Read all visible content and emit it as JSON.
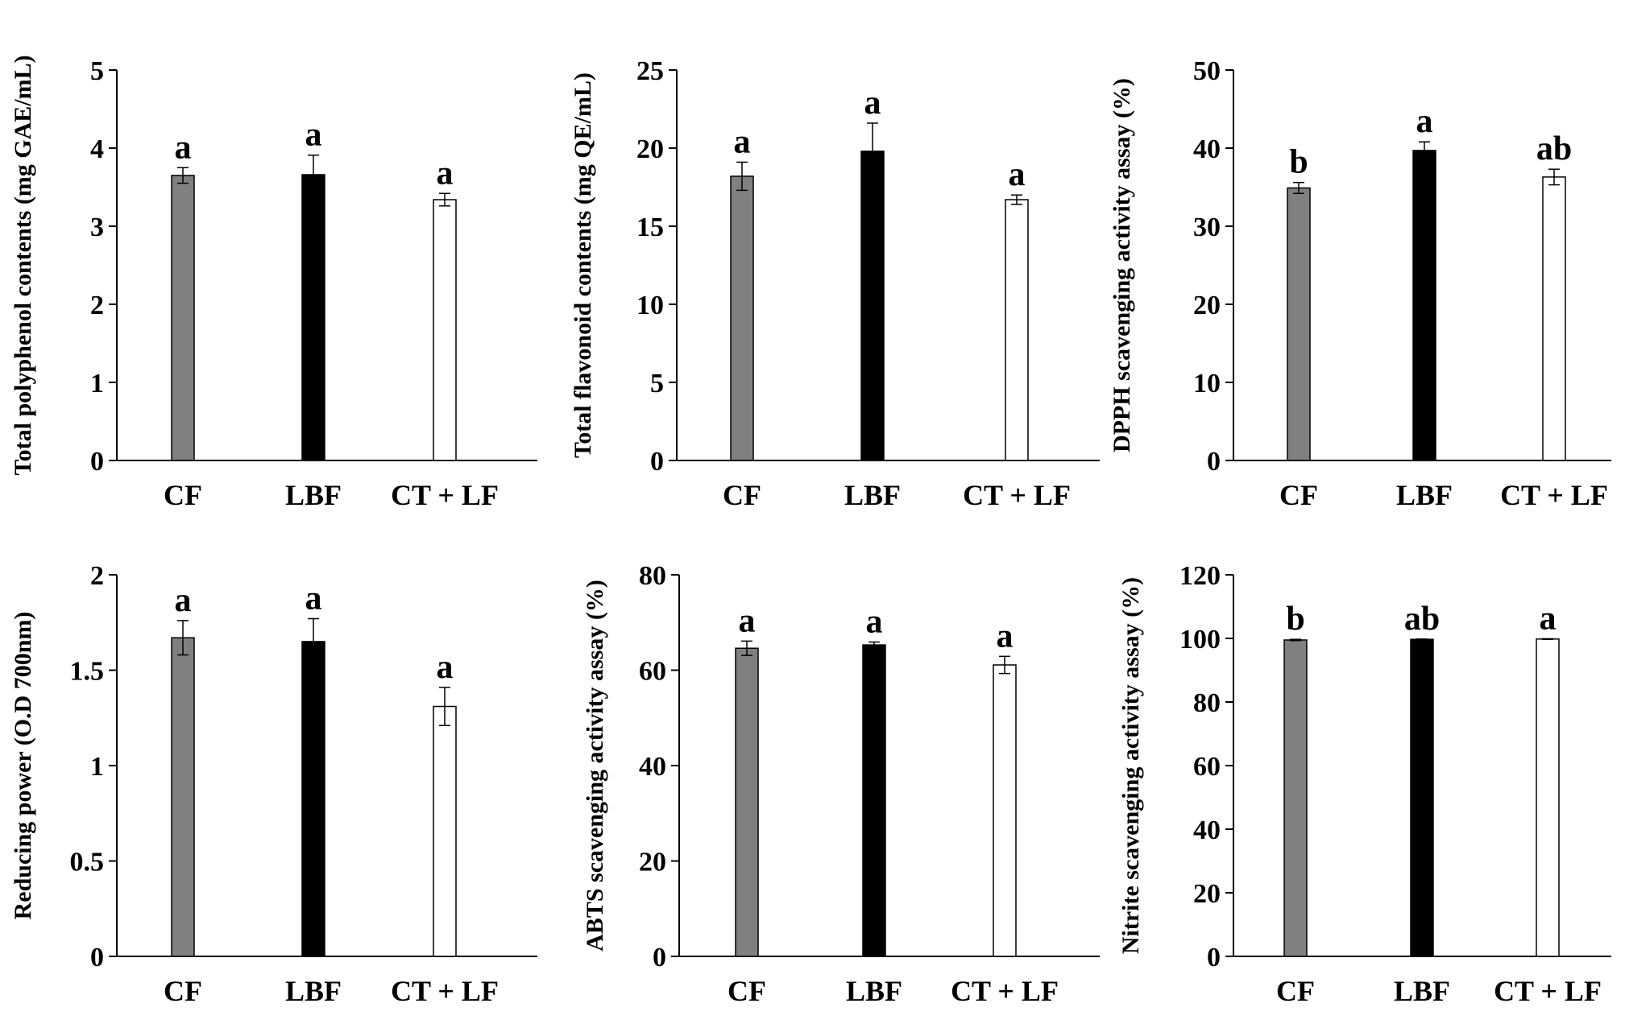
{
  "colors": {
    "CF": "#808080",
    "LBF": "#000000",
    "CT + LF": "#ffffff"
  },
  "chart_data": [
    {
      "type": "bar",
      "ylabel": "Total polyphenol contents (mg GAE/mL)",
      "categories": [
        "CF",
        "LBF",
        "CT + LF"
      ],
      "values": [
        3.65,
        3.66,
        3.34
      ],
      "errors": [
        0.1,
        0.25,
        0.08
      ],
      "significance": [
        "a",
        "a",
        "a"
      ],
      "yticks": [
        "0",
        "1",
        "2",
        "3",
        "4",
        "5"
      ],
      "ylim": [
        0,
        5
      ]
    },
    {
      "type": "bar",
      "ylabel": "Total flavonoid contents (mg QE/mL)",
      "categories": [
        "CF",
        "LBF",
        "CT + LF"
      ],
      "values": [
        18.2,
        19.8,
        16.7
      ],
      "errors": [
        0.9,
        1.8,
        0.3
      ],
      "significance": [
        "a",
        "a",
        "a"
      ],
      "yticks": [
        "0",
        "5",
        "10",
        "15",
        "20",
        "25"
      ],
      "ylim": [
        0,
        25
      ]
    },
    {
      "type": "bar",
      "ylabel": "DPPH scavenging activity assay (%)",
      "categories": [
        "CF",
        "LBF",
        "CT + LF"
      ],
      "values": [
        34.9,
        39.7,
        36.3
      ],
      "errors": [
        0.7,
        1.1,
        1.0
      ],
      "significance": [
        "b",
        "a",
        "ab"
      ],
      "yticks": [
        "0",
        "10",
        "20",
        "30",
        "40",
        "50"
      ],
      "ylim": [
        0,
        50
      ]
    },
    {
      "type": "bar",
      "ylabel": "Reducing power (O.D 700nm)",
      "categories": [
        "CF",
        "LBF",
        "CT + LF"
      ],
      "values": [
        1.67,
        1.65,
        1.31
      ],
      "errors": [
        0.09,
        0.12,
        0.1
      ],
      "significance": [
        "a",
        "a",
        "a"
      ],
      "yticks": [
        "0",
        "0.5",
        "1",
        "1.5",
        "2"
      ],
      "ylim": [
        0,
        2
      ]
    },
    {
      "type": "bar",
      "ylabel": "ABTS scavenging activity assay (%)",
      "categories": [
        "CF",
        "LBF",
        "CT + LF"
      ],
      "values": [
        64.6,
        65.3,
        61.1
      ],
      "errors": [
        1.5,
        0.6,
        1.8
      ],
      "significance": [
        "a",
        "a",
        "a"
      ],
      "yticks": [
        "0",
        "20",
        "40",
        "60",
        "80"
      ],
      "ylim": [
        0,
        80
      ]
    },
    {
      "type": "bar",
      "ylabel": "Nitrite scavenging activity assay (%)",
      "categories": [
        "CF",
        "LBF",
        "CT + LF"
      ],
      "values": [
        99.5,
        99.7,
        99.8
      ],
      "errors": [
        0.2,
        0.1,
        0.1
      ],
      "significance": [
        "b",
        "ab",
        "a"
      ],
      "yticks": [
        "0",
        "20",
        "40",
        "60",
        "80",
        "100",
        "120"
      ],
      "ylim": [
        0,
        120
      ]
    }
  ]
}
